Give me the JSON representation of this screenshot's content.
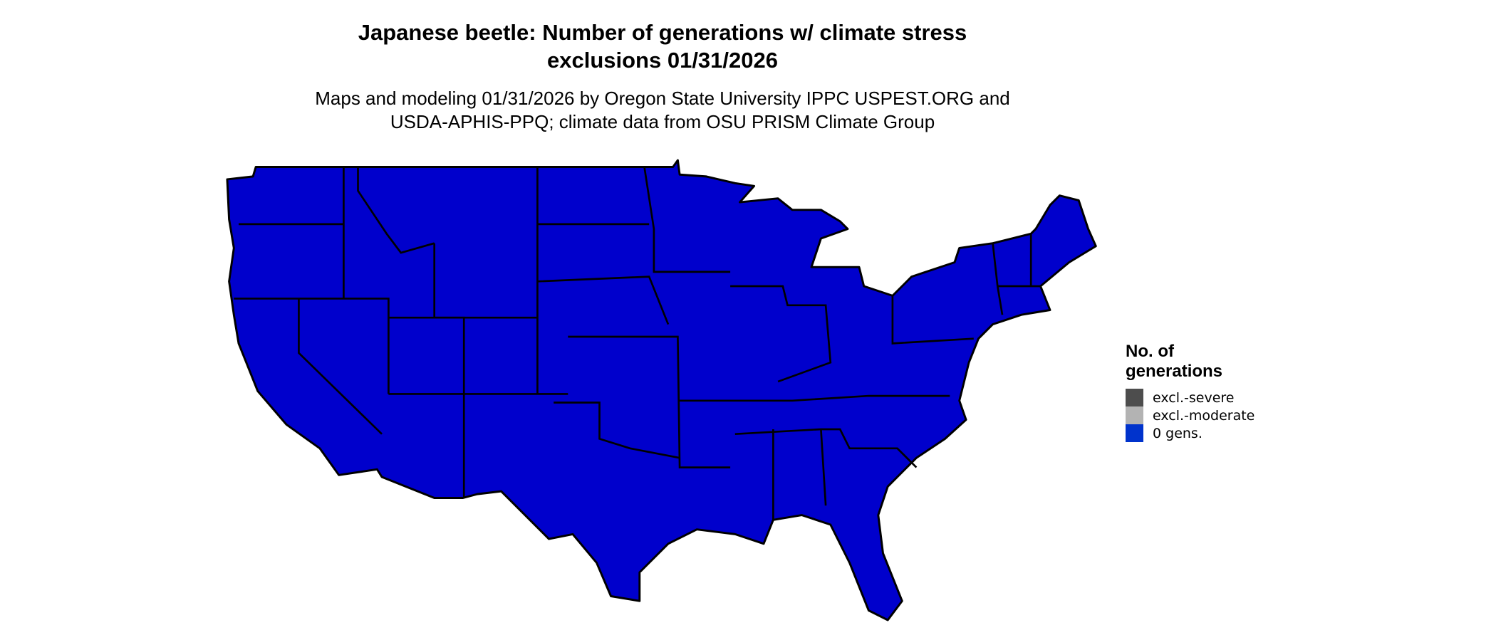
{
  "title": {
    "line1": "Japanese beetle: Number of generations w/ climate stress",
    "line2": "exclusions 01/31/2026"
  },
  "subtitle": {
    "line1": "Maps and modeling 01/31/2026 by Oregon State University IPPC USPEST.ORG and",
    "line2": "USDA-APHIS-PPQ; climate data from OSU PRISM Climate Group"
  },
  "map": {
    "region": "Contiguous United States",
    "fill_color": "#0000CC",
    "border_color": "#000000"
  },
  "legend": {
    "title_line1": "No. of",
    "title_line2": "generations",
    "items": [
      {
        "label": "excl.-severe",
        "color": "#4D4D4D"
      },
      {
        "label": "excl.-moderate",
        "color": "#B3B3B3"
      },
      {
        "label": "0 gens.",
        "color": "#0033CC"
      }
    ]
  }
}
